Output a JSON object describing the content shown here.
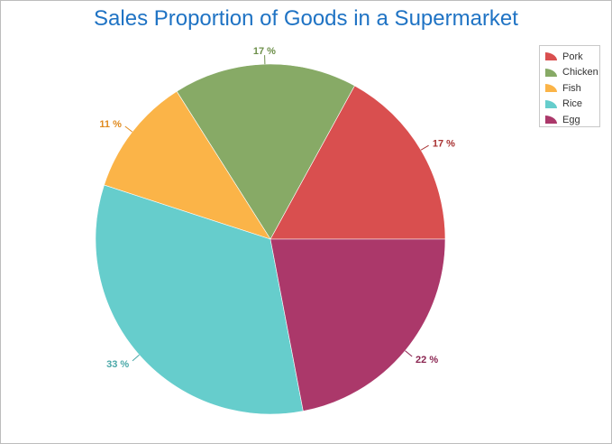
{
  "chart_data": {
    "type": "pie",
    "title": "Sales Proportion of Goods in a Supermarket",
    "categories": [
      "Pork",
      "Chicken",
      "Fish",
      "Rice",
      "Egg"
    ],
    "values": [
      17,
      17,
      11,
      33,
      22
    ],
    "labels": [
      "17 %",
      "17 %",
      "11 %",
      "33 %",
      "22 %"
    ],
    "colors": [
      "#d94f4f",
      "#87aa66",
      "#fbb448",
      "#66cdcc",
      "#ab386a"
    ],
    "label_colors": [
      "#a83232",
      "#6d8f4a",
      "#e08a1e",
      "#4aa8a8",
      "#8a2450"
    ],
    "legend_position": "top-right"
  }
}
